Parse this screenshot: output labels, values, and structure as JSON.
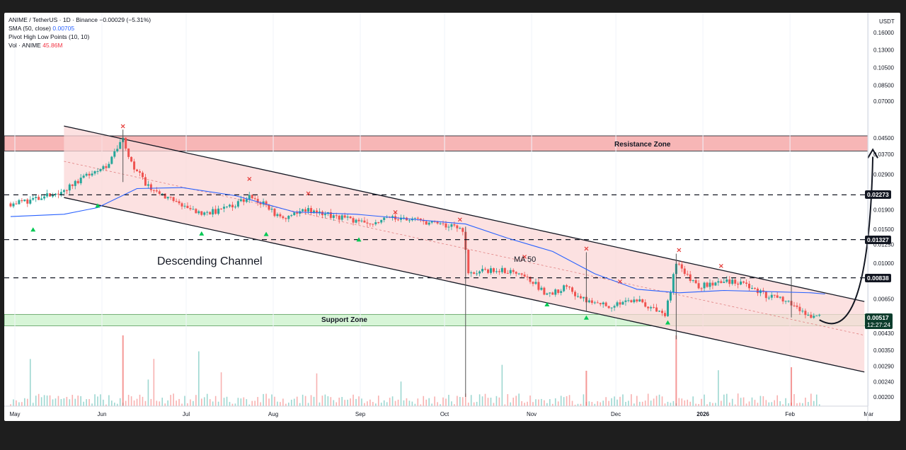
{
  "header": {
    "symbol": "ANIME / TetherUS · 1D · Binance",
    "change": "−0.00029 (−5.31%)",
    "sma_label": "SMA (50, close)",
    "sma_value": "0.00705",
    "pivot_label": "Pivot High Low Points (10, 10)",
    "vol_label": "Vol · ANIME",
    "vol_value": "45.86M"
  },
  "currency": "USDT",
  "colors": {
    "up": "#26a69a",
    "down": "#ef5350",
    "sma": "#2962ff",
    "channel_fill": "#fbd7d7",
    "resistance_fill": "#f7b6b6",
    "support_fill": "#d7f5d7",
    "last_price_bg": "#0d3d2d"
  },
  "annotations": {
    "resistance": "Resistance Zone",
    "support": "Support Zone",
    "channel": "Descending Channel",
    "ma": "MA 50"
  },
  "price_tags": {
    "last": "0.00517",
    "countdown": "12:27:24",
    "level1": "0.02273",
    "level2": "0.01327",
    "level3": "0.00838"
  },
  "chart_data": {
    "type": "candlestick",
    "y_scale": "log",
    "y_ticks": [
      "0.16000",
      "0.13000",
      "0.10500",
      "0.08500",
      "0.07000",
      "0.04500",
      "0.03700",
      "0.02900",
      "0.01900",
      "0.01500",
      "0.01250",
      "0.01000",
      "0.00650",
      "0.00430",
      "0.00350",
      "0.00290",
      "0.00240",
      "0.00200"
    ],
    "x_ticks": [
      "May",
      "Jun",
      "Jul",
      "Aug",
      "Sep",
      "Oct",
      "Nov",
      "Dec",
      "2026",
      "Feb",
      "Mar"
    ],
    "resistance_zone": [
      0.0385,
      0.0462
    ],
    "support_zone": [
      0.0047,
      0.0054
    ],
    "levels": [
      0.02273,
      0.01327,
      0.00838
    ],
    "last_price": 0.00517,
    "close_path": [
      [
        "2025-05-01",
        0.0205
      ],
      [
        "2025-05-10",
        0.0215
      ],
      [
        "2025-05-20",
        0.024
      ],
      [
        "2025-05-28",
        0.029
      ],
      [
        "2025-06-05",
        0.033
      ],
      [
        "2025-06-10",
        0.044
      ],
      [
        "2025-06-12",
        0.035
      ],
      [
        "2025-06-18",
        0.026
      ],
      [
        "2025-06-28",
        0.021
      ],
      [
        "2025-07-08",
        0.018
      ],
      [
        "2025-07-18",
        0.0195
      ],
      [
        "2025-07-25",
        0.0225
      ],
      [
        "2025-07-30",
        0.0205
      ],
      [
        "2025-08-05",
        0.017
      ],
      [
        "2025-08-15",
        0.019
      ],
      [
        "2025-08-25",
        0.0175
      ],
      [
        "2025-09-05",
        0.016
      ],
      [
        "2025-09-15",
        0.0175
      ],
      [
        "2025-09-25",
        0.0165
      ],
      [
        "2025-10-05",
        0.0155
      ],
      [
        "2025-10-09",
        0.015
      ],
      [
        "2025-10-11",
        0.0088
      ],
      [
        "2025-10-20",
        0.0092
      ],
      [
        "2025-10-30",
        0.009
      ],
      [
        "2025-11-08",
        0.0068
      ],
      [
        "2025-11-15",
        0.0075
      ],
      [
        "2025-11-22",
        0.0063
      ],
      [
        "2025-12-01",
        0.006
      ],
      [
        "2025-12-10",
        0.0064
      ],
      [
        "2025-12-20",
        0.0053
      ],
      [
        "2025-12-24",
        0.01
      ],
      [
        "2026-01-01",
        0.0075
      ],
      [
        "2026-01-10",
        0.0082
      ],
      [
        "2026-01-18",
        0.0077
      ],
      [
        "2026-01-25",
        0.0068
      ],
      [
        "2026-02-03",
        0.0062
      ],
      [
        "2026-02-10",
        0.0053
      ],
      [
        "2026-02-13",
        0.0052
      ]
    ],
    "sma50_path": [
      [
        "2025-05-01",
        0.0175
      ],
      [
        "2025-05-20",
        0.018
      ],
      [
        "2025-06-01",
        0.0195
      ],
      [
        "2025-06-15",
        0.0245
      ],
      [
        "2025-07-01",
        0.0248
      ],
      [
        "2025-07-20",
        0.0225
      ],
      [
        "2025-08-10",
        0.0185
      ],
      [
        "2025-09-01",
        0.018
      ],
      [
        "2025-09-20",
        0.017
      ],
      [
        "2025-10-10",
        0.016
      ],
      [
        "2025-10-25",
        0.0135
      ],
      [
        "2025-11-10",
        0.0115
      ],
      [
        "2025-11-25",
        0.0088
      ],
      [
        "2025-12-10",
        0.0073
      ],
      [
        "2025-12-25",
        0.007
      ],
      [
        "2026-01-10",
        0.0072
      ],
      [
        "2026-01-25",
        0.0071
      ],
      [
        "2026-02-10",
        0.007
      ],
      [
        "2026-02-15",
        0.0069
      ]
    ],
    "pivot_highs": [
      [
        "2025-06-10",
        0.0505
      ],
      [
        "2025-07-25",
        0.0268
      ],
      [
        "2025-08-15",
        0.0225
      ],
      [
        "2025-09-15",
        0.018
      ],
      [
        "2025-10-08",
        0.0164
      ],
      [
        "2025-10-31",
        0.0105
      ],
      [
        "2025-11-22",
        0.0116
      ],
      [
        "2025-12-04",
        0.0078
      ],
      [
        "2025-12-25",
        0.0114
      ],
      [
        "2026-01-09",
        0.0094
      ]
    ],
    "pivot_lows": [
      [
        "2025-05-09",
        0.015
      ],
      [
        "2025-06-01",
        0.02
      ],
      [
        "2025-07-08",
        0.0143
      ],
      [
        "2025-07-31",
        0.0142
      ],
      [
        "2025-09-02",
        0.0133
      ],
      [
        "2025-11-08",
        0.0061
      ],
      [
        "2025-11-22",
        0.0052
      ],
      [
        "2025-12-21",
        0.0049
      ]
    ]
  }
}
